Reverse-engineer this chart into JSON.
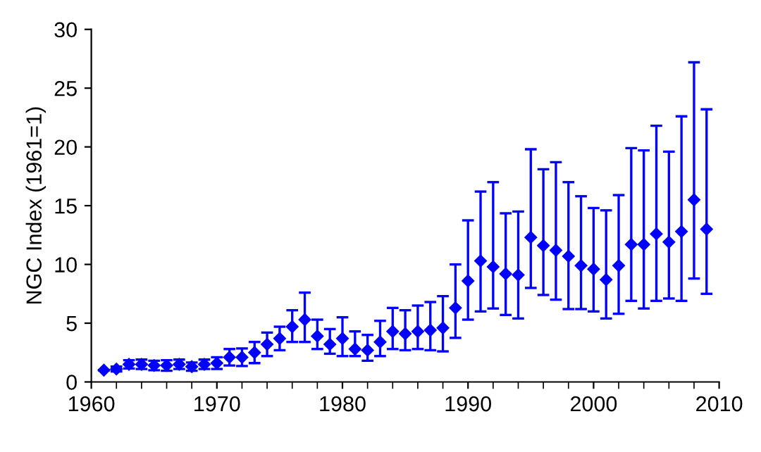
{
  "chart_data": {
    "type": "scatter",
    "ylabel": "NGC Index (1961=1)",
    "x": [
      1961,
      1962,
      1963,
      1964,
      1965,
      1966,
      1967,
      1968,
      1969,
      1970,
      1971,
      1972,
      1973,
      1974,
      1975,
      1976,
      1977,
      1978,
      1979,
      1980,
      1981,
      1982,
      1983,
      1984,
      1985,
      1986,
      1987,
      1988,
      1989,
      1990,
      1991,
      1992,
      1993,
      1994,
      1995,
      1996,
      1997,
      1998,
      1999,
      2000,
      2001,
      2002,
      2003,
      2004,
      2005,
      2006,
      2007,
      2008,
      2009
    ],
    "values": [
      1.0,
      1.1,
      1.5,
      1.5,
      1.4,
      1.4,
      1.5,
      1.3,
      1.5,
      1.6,
      2.1,
      2.1,
      2.5,
      3.2,
      3.7,
      4.7,
      5.3,
      3.9,
      3.2,
      3.7,
      2.8,
      2.7,
      3.4,
      4.3,
      4.1,
      4.3,
      4.4,
      4.6,
      6.3,
      8.6,
      10.3,
      9.8,
      9.2,
      9.1,
      12.3,
      11.6,
      11.2,
      10.7,
      9.9,
      9.6,
      8.7,
      9.9,
      11.7,
      11.7,
      12.6,
      11.9,
      12.8,
      15.5,
      13.0
    ],
    "errors": [
      null,
      0.2,
      0.35,
      0.4,
      0.4,
      0.45,
      0.4,
      0.35,
      0.4,
      0.5,
      0.7,
      0.75,
      0.9,
      1.0,
      1.0,
      [
        3.4,
        6.1
      ],
      [
        3.4,
        7.6
      ],
      [
        2.8,
        5.3
      ],
      [
        2.4,
        4.5
      ],
      [
        2.2,
        5.5
      ],
      [
        2.2,
        4.3
      ],
      [
        1.8,
        4.0
      ],
      [
        2.2,
        5.2
      ],
      [
        2.8,
        6.3
      ],
      [
        2.7,
        6.1
      ],
      [
        2.8,
        6.5
      ],
      [
        2.7,
        6.8
      ],
      [
        2.6,
        7.3
      ],
      [
        3.75,
        10.0
      ],
      [
        5.3,
        13.75
      ],
      [
        6.0,
        16.2
      ],
      [
        6.25,
        17.0
      ],
      [
        5.7,
        14.35
      ],
      [
        5.4,
        14.5
      ],
      [
        8.0,
        19.8
      ],
      [
        7.4,
        18.1
      ],
      [
        7.0,
        18.7
      ],
      [
        6.2,
        17.0
      ],
      [
        6.2,
        15.8
      ],
      [
        6.0,
        14.8
      ],
      [
        5.4,
        14.6
      ],
      [
        5.8,
        15.9
      ],
      [
        6.9,
        19.9
      ],
      [
        6.25,
        19.7
      ],
      [
        6.9,
        21.8
      ],
      [
        7.1,
        19.6
      ],
      [
        6.9,
        22.6
      ],
      [
        8.8,
        27.2
      ],
      [
        7.5,
        23.2
      ]
    ],
    "color": "#0000ff",
    "marker": "diamond",
    "grid": false,
    "xlim": [
      1960,
      2010
    ],
    "xticks": [
      1960,
      1970,
      1980,
      1990,
      2000,
      2010
    ],
    "ylim": [
      0,
      30
    ],
    "yticks": [
      0,
      5,
      10,
      15,
      20,
      25,
      30
    ]
  }
}
